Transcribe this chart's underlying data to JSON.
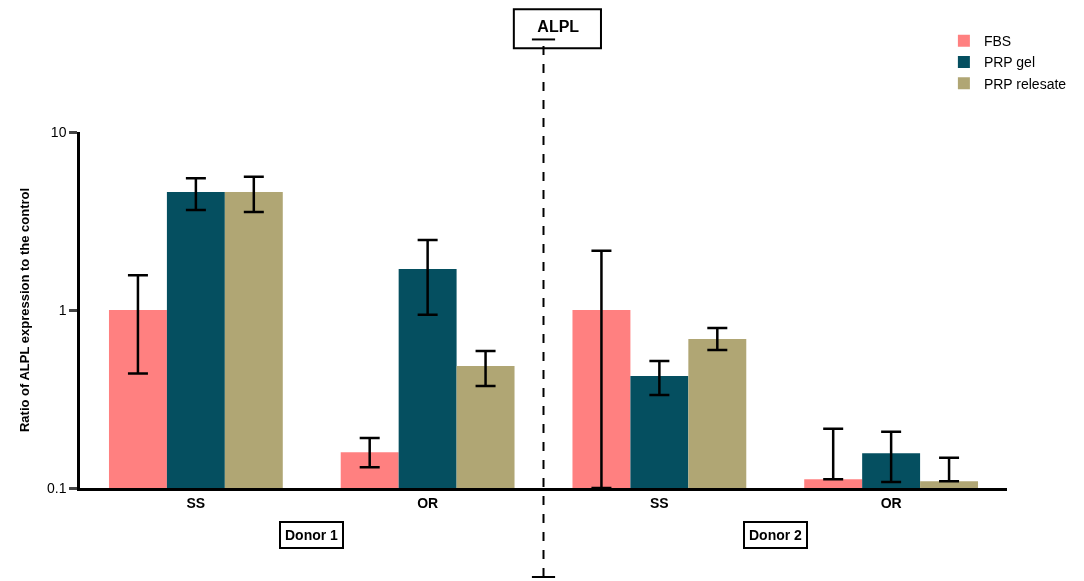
{
  "chart_data": {
    "type": "bar",
    "title": "ALPL",
    "ylabel": "Ratio of ALPL expression to the control",
    "categories": [
      "SS",
      "OR",
      "SS",
      "OR"
    ],
    "series": [
      {
        "name": "FBS",
        "color": "#ff8080",
        "values": [
          1,
          0.159,
          1,
          0.112
        ],
        "errors": [
          [
            0.44,
            1.57
          ],
          [
            0.131,
            0.191
          ],
          [
            0.1,
            2.15
          ],
          [
            0.112,
            0.215
          ]
        ]
      },
      {
        "name": "PRP gel",
        "color": "#054f60",
        "values": [
          4.6,
          1.7,
          0.426,
          0.157
        ],
        "errors": [
          [
            3.65,
            5.5
          ],
          [
            0.94,
            2.47
          ],
          [
            0.333,
            0.517
          ],
          [
            0.108,
            0.207
          ]
        ]
      },
      {
        "name": "PRP relesate",
        "color": "#b0a674",
        "values": [
          4.6,
          0.485,
          0.687,
          0.109
        ],
        "errors": [
          [
            3.55,
            5.6
          ],
          [
            0.374,
            0.589
          ],
          [
            0.596,
            0.792
          ],
          [
            0.109,
            0.148
          ]
        ]
      }
    ],
    "log": "y",
    "ylim": [
      0.1,
      10
    ],
    "yticks": [
      0.1,
      1,
      10
    ],
    "legend": "top right",
    "annotations": [
      "Donor 1",
      "Donor 2"
    ]
  }
}
